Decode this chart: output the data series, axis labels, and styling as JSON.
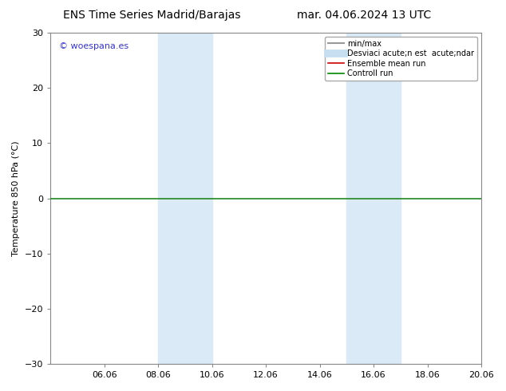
{
  "title_left": "ENS Time Series Madrid/Barajas",
  "title_right": "mar. 04.06.2024 13 UTC",
  "ylabel": "Temperature 850 hPa (°C)",
  "ylim": [
    -30,
    30
  ],
  "yticks": [
    -30,
    -20,
    -10,
    0,
    10,
    20,
    30
  ],
  "xtick_labels": [
    "06.06",
    "08.06",
    "10.06",
    "12.06",
    "14.06",
    "16.06",
    "18.06",
    "20.06"
  ],
  "xtick_positions": [
    2,
    4,
    6,
    8,
    10,
    12,
    14,
    16
  ],
  "xlim": [
    0,
    16
  ],
  "shaded_regions": [
    {
      "xstart": 4.0,
      "xend": 6.0,
      "color": "#daeaf7"
    },
    {
      "xstart": 11.0,
      "xend": 13.0,
      "color": "#daeaf7"
    }
  ],
  "hline_y": 0,
  "hline_color": "#228822",
  "hline_lw": 1.2,
  "watermark_text": "© woespana.es",
  "watermark_color": "#3333cc",
  "legend_entries": [
    {
      "label": "min/max",
      "color": "#999999",
      "lw": 1.5,
      "ls": "-"
    },
    {
      "label": "Desviaci acute;n est  acute;ndar",
      "color": "#c5dff0",
      "lw": 7,
      "ls": "-"
    },
    {
      "label": "Ensemble mean run",
      "color": "#cc0000",
      "lw": 1.2,
      "ls": "-"
    },
    {
      "label": "Controll run",
      "color": "#008800",
      "lw": 1.2,
      "ls": "-"
    }
  ],
  "bg_color": "#ffffff",
  "plot_bg_color": "#ffffff",
  "spine_color": "#888888",
  "title_fontsize": 10,
  "ylabel_fontsize": 8,
  "tick_fontsize": 8,
  "watermark_fontsize": 8,
  "legend_fontsize": 7
}
